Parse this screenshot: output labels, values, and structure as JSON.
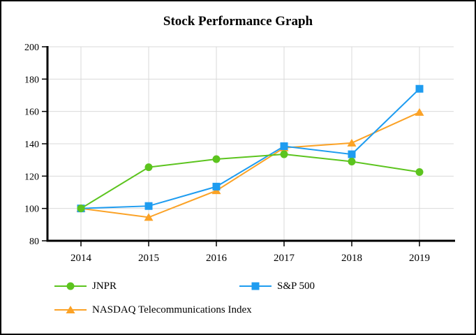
{
  "chart_data": {
    "type": "line",
    "title": "Stock Performance Graph",
    "categories": [
      "2014",
      "2015",
      "2016",
      "2017",
      "2018",
      "2019"
    ],
    "series": [
      {
        "name": "JNPR",
        "marker": "circle",
        "color": "#5CC41E",
        "values": [
          100,
          125.5,
          130.5,
          133.5,
          129,
          122.5
        ]
      },
      {
        "name": "S&P 500",
        "marker": "square",
        "color": "#1E9CF0",
        "values": [
          100,
          101.5,
          113.5,
          138.5,
          133.5,
          174
        ]
      },
      {
        "name": "NASDAQ Telecommunications Index",
        "marker": "triangle",
        "color": "#FBA226",
        "values": [
          100,
          94.5,
          111,
          137.5,
          140.5,
          159.5
        ]
      }
    ],
    "ylim": [
      80,
      200
    ],
    "yticks": [
      80,
      100,
      120,
      140,
      160,
      180,
      200
    ],
    "xlabel": "",
    "ylabel": "",
    "grid": true,
    "gridline_color": "#D9D9D9",
    "axis_color": "#000000",
    "legend_position": "bottom-left",
    "z_order_bottom_to_top": [
      "NASDAQ Telecommunications Index",
      "S&P 500",
      "JNPR"
    ]
  }
}
